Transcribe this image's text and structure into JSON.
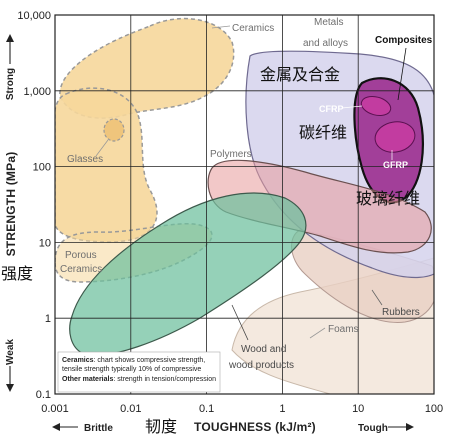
{
  "chart_data": {
    "type": "area",
    "xlabel": "TOUGHNESS (kJ/m²)",
    "ylabel": "STRENGTH (MPa)",
    "x_scale": "log",
    "y_scale": "log",
    "xlim": [
      0.001,
      100
    ],
    "ylim": [
      0.1,
      10000
    ],
    "grid": true,
    "x_ticks": [
      "0.001",
      "0.01",
      "0.1",
      "1",
      "10",
      "100"
    ],
    "y_ticks": [
      "10,000",
      "1,000",
      "100",
      "10",
      "1",
      "0.1"
    ],
    "x_low_label": "Brittle",
    "x_high_label": "Tough",
    "y_low_label": "Weak",
    "y_high_label": "Strong",
    "x_label_cn": "韧度",
    "y_label_cn": "强度",
    "series": [
      {
        "name": "Ceramics",
        "color": "#f6d79b",
        "outline": "dashed"
      },
      {
        "name": "Glasses",
        "color": "#f6d79b",
        "outline": "dashed"
      },
      {
        "name": "Porous Ceramics",
        "color": "#f6d79b",
        "outline": "dashed"
      },
      {
        "name": "Metals and alloys",
        "color": "#d5d2ec",
        "name_cn": "金属及合金"
      },
      {
        "name": "Composites",
        "color": "#9b2d8f"
      },
      {
        "name": "CFRP",
        "color": "#c23ca0",
        "name_cn": "碳纤维"
      },
      {
        "name": "GFRP",
        "color": "#c23ca0",
        "name_cn": "玻璃纤维"
      },
      {
        "name": "Polymers",
        "color": "#e89a9a"
      },
      {
        "name": "Rubbers",
        "color": "#e9cfc3"
      },
      {
        "name": "Foams",
        "color": "#f0e2d4"
      },
      {
        "name": "Wood and wood products",
        "color": "#6cbf9c"
      }
    ],
    "region_labels": {
      "ceramics": "Ceramics",
      "metals_line1": "Metals",
      "metals_line2": "and alloys",
      "metals_cn": "金属及合金",
      "composites": "Composites",
      "cfrp": "CFRP",
      "cfrp_cn": "碳纤维",
      "gfrp": "GFRP",
      "gfrp_cn": "玻璃纤维",
      "glasses": "Glasses",
      "polymers": "Polymers",
      "porous_line1": "Porous",
      "porous_line2": "Ceramics",
      "rubbers": "Rubbers",
      "foams": "Foams",
      "wood_line1": "Wood and",
      "wood_line2": "wood products"
    },
    "note": {
      "line1_bold": "Ceramics",
      "line1_rest": ": chart shows compressive strength,",
      "line2": "tensile strength typically 10% of compressive",
      "line3_bold": "Other materials",
      "line3_rest": ": strength in tension/compression"
    }
  }
}
